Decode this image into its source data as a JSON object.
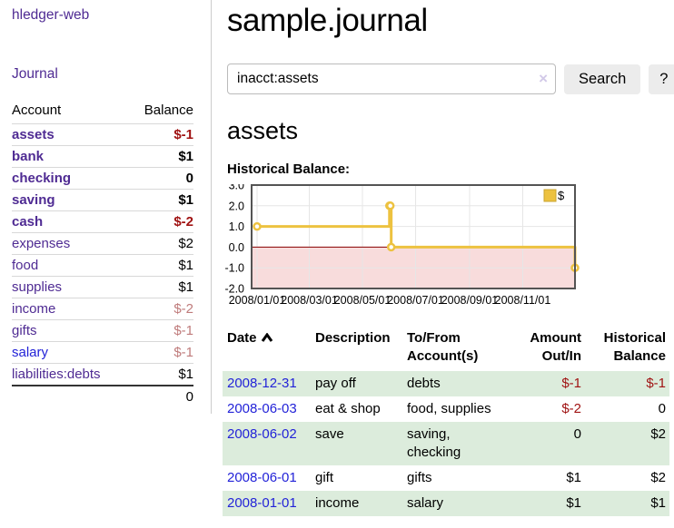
{
  "app": {
    "brand": "hledger-web"
  },
  "colors": {
    "link_purple": "#4f2b93",
    "link_blue": "#2323d8",
    "negative_strong": "#a01313",
    "negative_soft": "#bf7b7b",
    "row_stripe_green": "#dcecdc",
    "series_gold": "#edc240",
    "chart_negative_region": "#f8dcdc",
    "chart_zero_line": "#8b0000",
    "chart_border": "#545454",
    "chart_grid": "#e6e6e6"
  },
  "sidebar": {
    "nav": {
      "journal": "Journal"
    },
    "table": {
      "account_header": "Account",
      "balance_header": "Balance",
      "total": "0"
    },
    "accounts": [
      {
        "name": "assets",
        "balance": "$-1",
        "depth": 0,
        "bold": true,
        "name_class": "c-purple",
        "balance_class": "v-neg"
      },
      {
        "name": "bank",
        "balance": "$1",
        "depth": 1,
        "bold": true,
        "name_class": "c-purple",
        "balance_class": ""
      },
      {
        "name": "checking",
        "balance": "0",
        "depth": 2,
        "bold": true,
        "name_class": "c-purple",
        "balance_class": ""
      },
      {
        "name": "saving",
        "balance": "$1",
        "depth": 2,
        "bold": true,
        "name_class": "c-purple",
        "balance_class": ""
      },
      {
        "name": "cash",
        "balance": "$-2",
        "depth": 1,
        "bold": true,
        "name_class": "c-purple",
        "balance_class": "v-neg"
      },
      {
        "name": "expenses",
        "balance": "$2",
        "depth": 0,
        "bold": false,
        "name_class": "c-purple",
        "balance_class": ""
      },
      {
        "name": "food",
        "balance": "$1",
        "depth": 1,
        "bold": false,
        "name_class": "c-purple",
        "balance_class": ""
      },
      {
        "name": "supplies",
        "balance": "$1",
        "depth": 1,
        "bold": false,
        "name_class": "c-purple",
        "balance_class": ""
      },
      {
        "name": "income",
        "balance": "$-2",
        "depth": 0,
        "bold": false,
        "name_class": "c-purple",
        "balance_class": "v-neg-soft"
      },
      {
        "name": "gifts",
        "balance": "$-1",
        "depth": 1,
        "bold": false,
        "name_class": "c-purple",
        "balance_class": "v-neg-soft"
      },
      {
        "name": "salary",
        "balance": "$-1",
        "depth": 1,
        "bold": false,
        "name_class": "c-blue",
        "balance_class": "v-neg-soft"
      },
      {
        "name": "liabilities:debts",
        "balance": "$1",
        "depth": 0,
        "bold": false,
        "name_class": "c-purple",
        "balance_class": ""
      }
    ]
  },
  "main": {
    "title": "sample.journal",
    "search": {
      "value": "inacct:assets",
      "clear_icon": "×",
      "button": "Search",
      "help_button": "?"
    },
    "heading": "assets",
    "chart_label": "Historical Balance:"
  },
  "register": {
    "headers": {
      "date": "Date",
      "description": "Description",
      "accounts": "To/From Account(s)",
      "amount": "Amount Out/In",
      "balance": "Historical Balance"
    },
    "rows": [
      {
        "date": "2008-12-31",
        "description": "pay off",
        "accounts": "debts",
        "amount": "$-1",
        "balance": "$-1",
        "amount_class": "v-neg",
        "balance_class": "v-neg"
      },
      {
        "date": "2008-06-03",
        "description": "eat & shop",
        "accounts": "food, supplies",
        "amount": "$-2",
        "balance": "0",
        "amount_class": "v-neg",
        "balance_class": ""
      },
      {
        "date": "2008-06-02",
        "description": "save",
        "accounts": "saving, checking",
        "amount": "0",
        "balance": "$2",
        "amount_class": "",
        "balance_class": ""
      },
      {
        "date": "2008-06-01",
        "description": "gift",
        "accounts": "gifts",
        "amount": "$1",
        "balance": "$2",
        "amount_class": "",
        "balance_class": ""
      },
      {
        "date": "2008-01-01",
        "description": "income",
        "accounts": "salary",
        "amount": "$1",
        "balance": "$1",
        "amount_class": "",
        "balance_class": ""
      }
    ]
  },
  "chart_data": {
    "type": "line",
    "title": "Historical Balance:",
    "x_type": "date",
    "xmin": "2008-01-01",
    "xmax": "2008-12-31",
    "ylim": [
      -2.0,
      3.0
    ],
    "yticks": [
      "3.0",
      "2.0",
      "1.0",
      "0.0",
      "-1.0",
      "-2.0"
    ],
    "ytick_values": [
      3,
      2,
      1,
      0,
      -1,
      -2
    ],
    "xticks": [
      {
        "label": "2008/01/01",
        "date": "2008-01-01"
      },
      {
        "label": "2008/03/01",
        "date": "2008-03-01"
      },
      {
        "label": "2008/05/01",
        "date": "2008-05-01"
      },
      {
        "label": "2008/07/01",
        "date": "2008-07-01"
      },
      {
        "label": "2008/09/01",
        "date": "2008-09-01"
      },
      {
        "label": "2008/11/01",
        "date": "2008-11-01"
      }
    ],
    "series": [
      {
        "name": "$",
        "color": "#edc240",
        "step": true,
        "points": [
          [
            "2008-01-01",
            1
          ],
          [
            "2008-06-01",
            2
          ],
          [
            "2008-06-02",
            2
          ],
          [
            "2008-06-03",
            0
          ],
          [
            "2008-12-31",
            -1
          ]
        ]
      }
    ],
    "grid": true,
    "legend_position": "top-right",
    "negative_region_color": "#f8dcdc",
    "zero_line_color": "#8b0000"
  }
}
